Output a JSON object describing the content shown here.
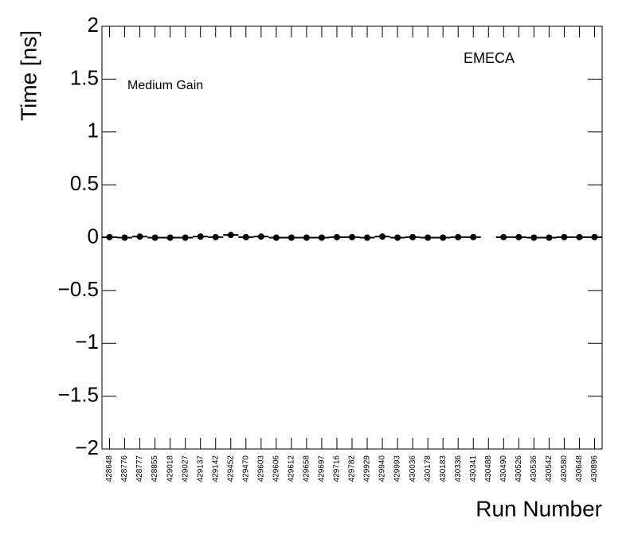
{
  "chart_data": {
    "type": "scatter",
    "ylabel": "Time [ns]",
    "xlabel": "Run Number",
    "annotations": [
      "EMECA",
      "Medium Gain"
    ],
    "categories": [
      "428648",
      "428776",
      "428777",
      "428855",
      "429018",
      "429027",
      "429137",
      "429142",
      "429452",
      "429470",
      "429603",
      "429606",
      "429612",
      "429658",
      "429697",
      "429716",
      "429782",
      "429929",
      "429940",
      "429993",
      "430036",
      "430178",
      "430183",
      "430336",
      "430341",
      "430488",
      "430490",
      "430526",
      "430536",
      "430542",
      "430580",
      "430648",
      "430896"
    ],
    "values": [
      0.005,
      0,
      0.01,
      0,
      0,
      0,
      0.01,
      0.005,
      0.025,
      0.005,
      0.01,
      0,
      0,
      0,
      0,
      0.005,
      0.005,
      0,
      0.01,
      0,
      0.005,
      0,
      0,
      0.005,
      0.005,
      null,
      0.005,
      0.005,
      0,
      0,
      0.005,
      0.005,
      0.005
    ],
    "color": "#000000",
    "ylim": [
      -2,
      2
    ],
    "yticks": [
      {
        "value": -2,
        "label": "−2"
      },
      {
        "value": -1.5,
        "label": "−1.5"
      },
      {
        "value": -1,
        "label": "−1"
      },
      {
        "value": -0.5,
        "label": "−0.5"
      },
      0,
      0.5,
      1,
      1.5,
      2
    ]
  }
}
